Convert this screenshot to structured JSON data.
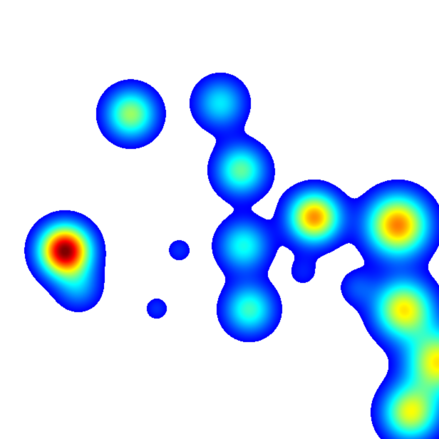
{
  "chart_data": {
    "type": "heatmap",
    "title": "",
    "xlabel": "",
    "ylabel": "",
    "axes_visible": false,
    "grid": false,
    "legend": "none",
    "colormap": "jet",
    "background_color": "#ffffff",
    "colormap_stops": [
      "#000080",
      "#0000ff",
      "#0080ff",
      "#00ffff",
      "#80ff80",
      "#ffff00",
      "#ff8000",
      "#ff0000",
      "#800000"
    ],
    "threshold": 0.07,
    "value_range": [
      0,
      1
    ],
    "sources": [
      {
        "x": 0.298,
        "y": 0.26,
        "intensity": 0.5,
        "spread": 0.04
      },
      {
        "x": 0.502,
        "y": 0.235,
        "intensity": 0.32,
        "spread": 0.04
      },
      {
        "x": 0.549,
        "y": 0.388,
        "intensity": 0.44,
        "spread": 0.04
      },
      {
        "x": 0.716,
        "y": 0.495,
        "intensity": 0.72,
        "spread": 0.04
      },
      {
        "x": 0.906,
        "y": 0.513,
        "intensity": 0.74,
        "spread": 0.048
      },
      {
        "x": 0.148,
        "y": 0.571,
        "intensity": 1.0,
        "spread": 0.04
      },
      {
        "x": 0.179,
        "y": 0.656,
        "intensity": 0.22,
        "spread": 0.036
      },
      {
        "x": 0.555,
        "y": 0.56,
        "intensity": 0.36,
        "spread": 0.04
      },
      {
        "x": 0.568,
        "y": 0.705,
        "intensity": 0.4,
        "spread": 0.04
      },
      {
        "x": 0.691,
        "y": 0.62,
        "intensity": 0.1,
        "spread": 0.028
      },
      {
        "x": 0.92,
        "y": 0.705,
        "intensity": 0.62,
        "spread": 0.046
      },
      {
        "x": 1.0,
        "y": 0.825,
        "intensity": 0.62,
        "spread": 0.05
      },
      {
        "x": 0.935,
        "y": 0.94,
        "intensity": 0.58,
        "spread": 0.044
      },
      {
        "x": 0.813,
        "y": 0.655,
        "intensity": 0.14,
        "spread": 0.03
      },
      {
        "x": 0.408,
        "y": 0.57,
        "intensity": 0.12,
        "spread": 0.022
      },
      {
        "x": 0.357,
        "y": 0.703,
        "intensity": 0.12,
        "spread": 0.022
      }
    ]
  }
}
